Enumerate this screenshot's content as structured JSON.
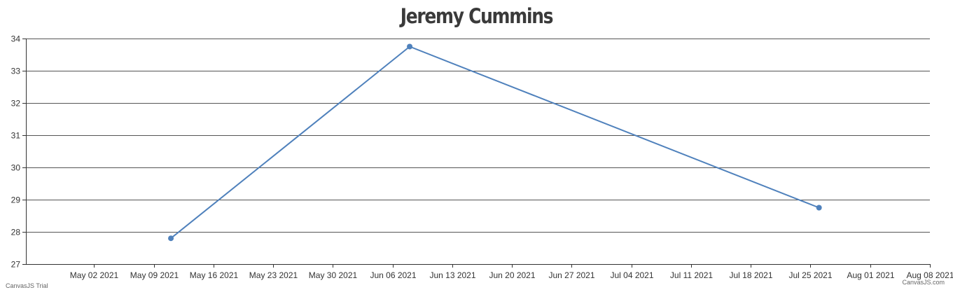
{
  "chart_data": {
    "type": "line",
    "title": "Jeremy Cummins",
    "xlabel": "",
    "ylabel": "",
    "x_ticks": [
      "May 02 2021",
      "May 09 2021",
      "May 16 2021",
      "May 23 2021",
      "May 30 2021",
      "Jun 06 2021",
      "Jun 13 2021",
      "Jun 20 2021",
      "Jun 27 2021",
      "Jul 04 2021",
      "Jul 11 2021",
      "Jul 18 2021",
      "Jul 25 2021",
      "Aug 01 2021",
      "Aug 08 2021"
    ],
    "y_ticks": [
      27,
      28,
      29,
      30,
      31,
      32,
      33,
      34
    ],
    "ylim": [
      27,
      34
    ],
    "xlim": [
      "2021-04-24",
      "2021-08-08"
    ],
    "grid": true,
    "series": [
      {
        "x": [
          "2021-05-11",
          "2021-06-08",
          "2021-07-26"
        ],
        "y": [
          27.8,
          33.75,
          28.75
        ],
        "color": "#4f81bc"
      }
    ]
  },
  "credits": {
    "left": "CanvasJS Trial",
    "right": "CanvasJS.com"
  },
  "colors": {
    "series": "#4f81bc",
    "grid": "#555555",
    "axis": "#333333",
    "title": "#3a3a3a"
  }
}
